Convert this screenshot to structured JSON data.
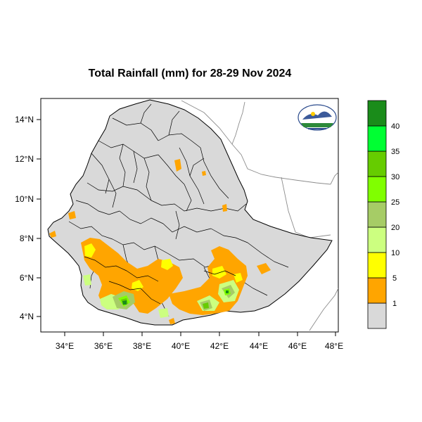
{
  "title": "Total Rainfall (mm) for 28-29 Nov 2024",
  "map": {
    "lon_ticks": [
      "34°E",
      "36°E",
      "38°E",
      "40°E",
      "42°E",
      "44°E",
      "46°E",
      "48°E"
    ],
    "lat_ticks": [
      "14°N",
      "12°N",
      "10°N",
      "8°N",
      "6°N",
      "4°N"
    ]
  },
  "legend": {
    "levels": [
      "1",
      "5",
      "10",
      "20",
      "25",
      "30",
      "35",
      "40"
    ],
    "colors": [
      "#d9d9d9",
      "#ffa500",
      "#ffff00",
      "#ccff80",
      "#a6cc66",
      "#80ff00",
      "#66cc00",
      "#00ff33",
      "#1a8c1a"
    ]
  },
  "colors": {
    "country_fill": "#d9d9d9",
    "border": "#000000",
    "neighbor_border": "#8c8c8c"
  },
  "logo": {
    "icon": "meteorology-institute-logo"
  }
}
